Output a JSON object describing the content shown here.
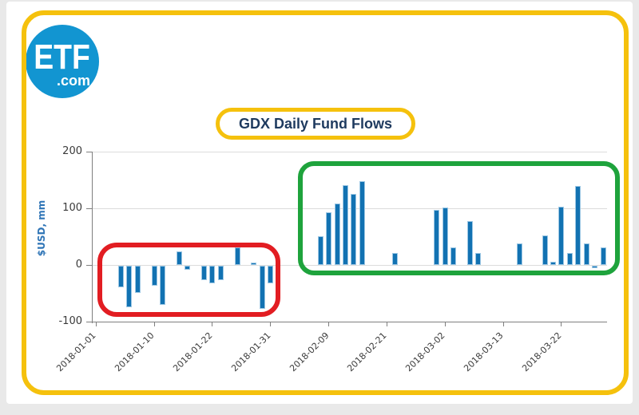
{
  "logo": {
    "line1": "ETF",
    "line2": ".com"
  },
  "title": {
    "text": "GDX Daily Fund Flows"
  },
  "colors": {
    "yellow_highlight": "#f5c10d",
    "red_box": "#e21d22",
    "green_box": "#1ea33c",
    "bar_blue": "#1272b2",
    "bar_edge": "#9cc7e4",
    "logo_blue": "#1295d1",
    "title_navy": "#1e3a5f",
    "ylabel_blue": "#2e74b6"
  },
  "chart_data": {
    "type": "bar",
    "title": "GDX Daily Fund Flows",
    "xlabel": "",
    "ylabel": "$USD, mm",
    "ylim": [
      -100,
      200
    ],
    "yticks": [
      200,
      100,
      0,
      -100
    ],
    "grid": "horizontal",
    "x_axis_unit": "consecutive trading days, 2018-01-01 to 2018-03-29",
    "total_day_slots": 62,
    "ticks": [
      {
        "day_index": 0,
        "label": "2018-01-01"
      },
      {
        "day_index": 7,
        "label": "2018-01-10"
      },
      {
        "day_index": 14,
        "label": "2018-01-22"
      },
      {
        "day_index": 21,
        "label": "2018-01-31"
      },
      {
        "day_index": 28,
        "label": "2018-02-09"
      },
      {
        "day_index": 35,
        "label": "2018-02-21"
      },
      {
        "day_index": 42,
        "label": "2018-03-02"
      },
      {
        "day_index": 49,
        "label": "2018-03-13"
      },
      {
        "day_index": 56,
        "label": "2018-03-22"
      }
    ],
    "points": [
      {
        "date": "2018-01-04",
        "day_index": 3,
        "value": -38
      },
      {
        "date": "2018-01-05",
        "day_index": 4,
        "value": -73
      },
      {
        "date": "2018-01-08",
        "day_index": 5,
        "value": -48
      },
      {
        "date": "2018-01-10",
        "day_index": 7,
        "value": -35
      },
      {
        "date": "2018-01-11",
        "day_index": 8,
        "value": -68
      },
      {
        "date": "2018-01-16",
        "day_index": 10,
        "value": 25
      },
      {
        "date": "2018-01-17",
        "day_index": 11,
        "value": -6
      },
      {
        "date": "2018-01-19",
        "day_index": 13,
        "value": -25
      },
      {
        "date": "2018-01-22",
        "day_index": 14,
        "value": -30
      },
      {
        "date": "2018-01-23",
        "day_index": 15,
        "value": -25
      },
      {
        "date": "2018-01-25",
        "day_index": 17,
        "value": 31
      },
      {
        "date": "2018-01-29",
        "day_index": 19,
        "value": 4
      },
      {
        "date": "2018-01-30",
        "day_index": 20,
        "value": -75
      },
      {
        "date": "2018-01-31",
        "day_index": 21,
        "value": -31
      },
      {
        "date": "2018-02-08",
        "day_index": 27,
        "value": 51
      },
      {
        "date": "2018-02-09",
        "day_index": 28,
        "value": 93
      },
      {
        "date": "2018-02-12",
        "day_index": 29,
        "value": 109
      },
      {
        "date": "2018-02-13",
        "day_index": 30,
        "value": 141
      },
      {
        "date": "2018-02-14",
        "day_index": 31,
        "value": 125
      },
      {
        "date": "2018-02-15",
        "day_index": 32,
        "value": 148
      },
      {
        "date": "2018-02-22",
        "day_index": 36,
        "value": 21
      },
      {
        "date": "2018-03-01",
        "day_index": 41,
        "value": 97
      },
      {
        "date": "2018-03-02",
        "day_index": 42,
        "value": 101
      },
      {
        "date": "2018-03-05",
        "day_index": 43,
        "value": 32
      },
      {
        "date": "2018-03-07",
        "day_index": 45,
        "value": 78
      },
      {
        "date": "2018-03-08",
        "day_index": 46,
        "value": 22
      },
      {
        "date": "2018-03-15",
        "day_index": 51,
        "value": 38
      },
      {
        "date": "2018-03-20",
        "day_index": 54,
        "value": 52
      },
      {
        "date": "2018-03-21",
        "day_index": 55,
        "value": 6
      },
      {
        "date": "2018-03-22",
        "day_index": 56,
        "value": 103
      },
      {
        "date": "2018-03-23",
        "day_index": 57,
        "value": 22
      },
      {
        "date": "2018-03-26",
        "day_index": 58,
        "value": 139
      },
      {
        "date": "2018-03-27",
        "day_index": 59,
        "value": 38
      },
      {
        "date": "2018-03-28",
        "day_index": 60,
        "value": -4
      },
      {
        "date": "2018-03-29",
        "day_index": 61,
        "value": 32
      }
    ],
    "annotations": [
      {
        "shape": "rounded-rect",
        "color": "#e21d22",
        "region": "January negative flow bars"
      },
      {
        "shape": "rounded-rect",
        "color": "#1ea33c",
        "region": "February-March positive flow bars"
      },
      {
        "shape": "rounded-rect",
        "color": "#f5c10d",
        "region": "chart title"
      },
      {
        "shape": "rounded-rect",
        "color": "#f5c10d",
        "region": "entire figure border"
      }
    ]
  }
}
